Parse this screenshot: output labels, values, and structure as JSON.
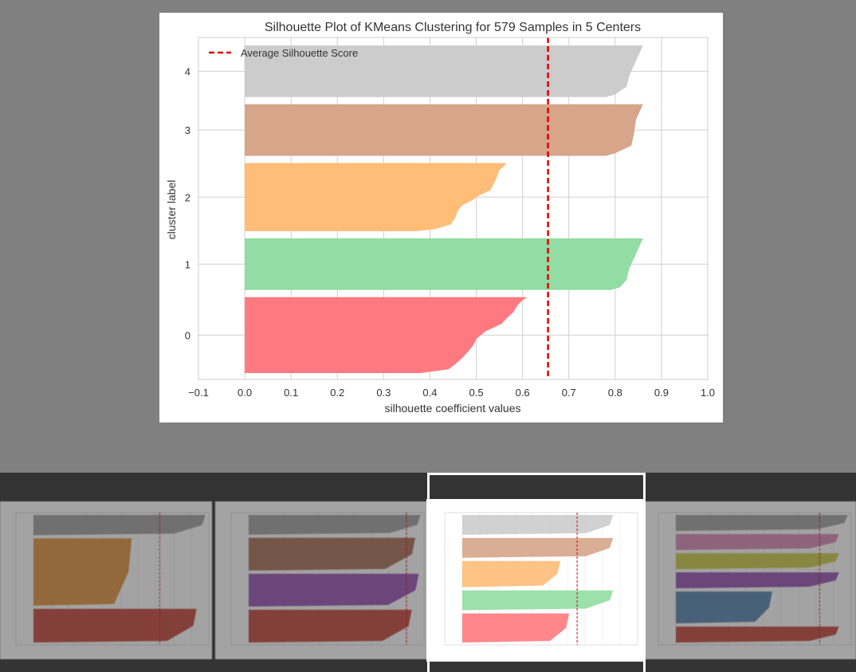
{
  "chart_data": {
    "type": "silhouette",
    "title": "Silhouette Plot of KMeans Clustering for 579 Samples in 5 Centers",
    "xlabel": "silhouette coefficient values",
    "ylabel": "cluster label",
    "xlim": [
      -0.1,
      1.0
    ],
    "xticks": [
      "−0.1",
      "0.0",
      "0.1",
      "0.2",
      "0.3",
      "0.4",
      "0.5",
      "0.6",
      "0.7",
      "0.8",
      "0.9",
      "1.0"
    ],
    "xtick_values": [
      -0.1,
      0.0,
      0.1,
      0.2,
      0.3,
      0.4,
      0.5,
      0.6,
      0.7,
      0.8,
      0.9,
      1.0
    ],
    "grid": true,
    "legend": {
      "position": "top-left",
      "entries": [
        "Average Silhouette Score"
      ]
    },
    "average_silhouette_score": 0.655,
    "average_line_color": "#e00000",
    "clusters": [
      {
        "label": "0",
        "size": 147,
        "color": "#ff7a80",
        "max": 0.61,
        "min": 0.44,
        "profile": [
          [
            0,
            0.61
          ],
          [
            0.04,
            0.6
          ],
          [
            0.1,
            0.59
          ],
          [
            0.2,
            0.58
          ],
          [
            0.28,
            0.565
          ],
          [
            0.35,
            0.555
          ],
          [
            0.45,
            0.52
          ],
          [
            0.55,
            0.5
          ],
          [
            0.62,
            0.495
          ],
          [
            0.7,
            0.485
          ],
          [
            0.8,
            0.47
          ],
          [
            0.88,
            0.455
          ],
          [
            0.95,
            0.44
          ],
          [
            1,
            0.38
          ]
        ]
      },
      {
        "label": "1",
        "size": 100,
        "color": "#91dda3",
        "max": 0.86,
        "min": 0.81,
        "profile": [
          [
            0,
            0.86
          ],
          [
            0.1,
            0.855
          ],
          [
            0.3,
            0.845
          ],
          [
            0.6,
            0.83
          ],
          [
            0.8,
            0.825
          ],
          [
            0.95,
            0.81
          ],
          [
            1,
            0.79
          ]
        ]
      },
      {
        "label": "2",
        "size": 132,
        "color": "#ffbd78",
        "max": 0.56,
        "min": 0.39,
        "profile": [
          [
            0,
            0.565
          ],
          [
            0.05,
            0.56
          ],
          [
            0.1,
            0.55
          ],
          [
            0.2,
            0.545
          ],
          [
            0.28,
            0.54
          ],
          [
            0.4,
            0.53
          ],
          [
            0.48,
            0.505
          ],
          [
            0.55,
            0.49
          ],
          [
            0.62,
            0.47
          ],
          [
            0.7,
            0.46
          ],
          [
            0.8,
            0.455
          ],
          [
            0.9,
            0.445
          ],
          [
            0.97,
            0.41
          ],
          [
            1,
            0.37
          ]
        ]
      },
      {
        "label": "3",
        "size": 100,
        "color": "#d6a58a",
        "max": 0.86,
        "min": 0.8,
        "profile": [
          [
            0,
            0.86
          ],
          [
            0.1,
            0.855
          ],
          [
            0.3,
            0.845
          ],
          [
            0.6,
            0.84
          ],
          [
            0.8,
            0.835
          ],
          [
            0.95,
            0.8
          ],
          [
            1,
            0.78
          ]
        ]
      },
      {
        "label": "4",
        "size": 100,
        "color": "#cccccc",
        "max": 0.86,
        "min": 0.79,
        "profile": [
          [
            0,
            0.86
          ],
          [
            0.1,
            0.855
          ],
          [
            0.3,
            0.845
          ],
          [
            0.6,
            0.83
          ],
          [
            0.8,
            0.825
          ],
          [
            0.95,
            0.8
          ],
          [
            1,
            0.78
          ]
        ]
      }
    ]
  },
  "thumbnails": [
    {
      "id": "k3",
      "active": false,
      "average": 0.72,
      "clusters": [
        {
          "label": "0",
          "color": "#c0392b",
          "max": 0.93,
          "size": 100
        },
        {
          "label": "1",
          "color": "#e08a2e",
          "max": 0.56,
          "size": 200
        },
        {
          "label": "2",
          "color": "#999999",
          "max": 0.98,
          "size": 60
        }
      ]
    },
    {
      "id": "k4",
      "active": false,
      "average": 0.9,
      "clusters": [
        {
          "label": "0",
          "color": "#c0392b",
          "max": 0.93,
          "size": 100
        },
        {
          "label": "1",
          "color": "#8e44ad",
          "max": 0.97,
          "size": 100
        },
        {
          "label": "2",
          "color": "#a5624a",
          "max": 0.95,
          "size": 100
        },
        {
          "label": "3",
          "color": "#999999",
          "max": 0.98,
          "size": 60
        }
      ]
    },
    {
      "id": "k5",
      "active": true,
      "average": 0.655,
      "clusters": [
        {
          "label": "0",
          "color": "#ff7a80",
          "max": 0.61,
          "size": 147
        },
        {
          "label": "1",
          "color": "#91dda3",
          "max": 0.86,
          "size": 100
        },
        {
          "label": "2",
          "color": "#ffbd78",
          "max": 0.56,
          "size": 132
        },
        {
          "label": "3",
          "color": "#d6a58a",
          "max": 0.86,
          "size": 100
        },
        {
          "label": "4",
          "color": "#cccccc",
          "max": 0.86,
          "size": 100
        }
      ]
    },
    {
      "id": "k6",
      "active": false,
      "average": 0.82,
      "clusters": [
        {
          "label": "0",
          "color": "#c0392b",
          "max": 0.93,
          "size": 60
        },
        {
          "label": "1",
          "color": "#4a7aa8",
          "max": 0.55,
          "size": 120
        },
        {
          "label": "2",
          "color": "#8e44ad",
          "max": 0.93,
          "size": 60
        },
        {
          "label": "3",
          "color": "#c8c83a",
          "max": 0.93,
          "size": 60
        },
        {
          "label": "4",
          "color": "#d580b0",
          "max": 0.93,
          "size": 60
        },
        {
          "label": "5",
          "color": "#999999",
          "max": 0.98,
          "size": 60
        }
      ]
    }
  ]
}
